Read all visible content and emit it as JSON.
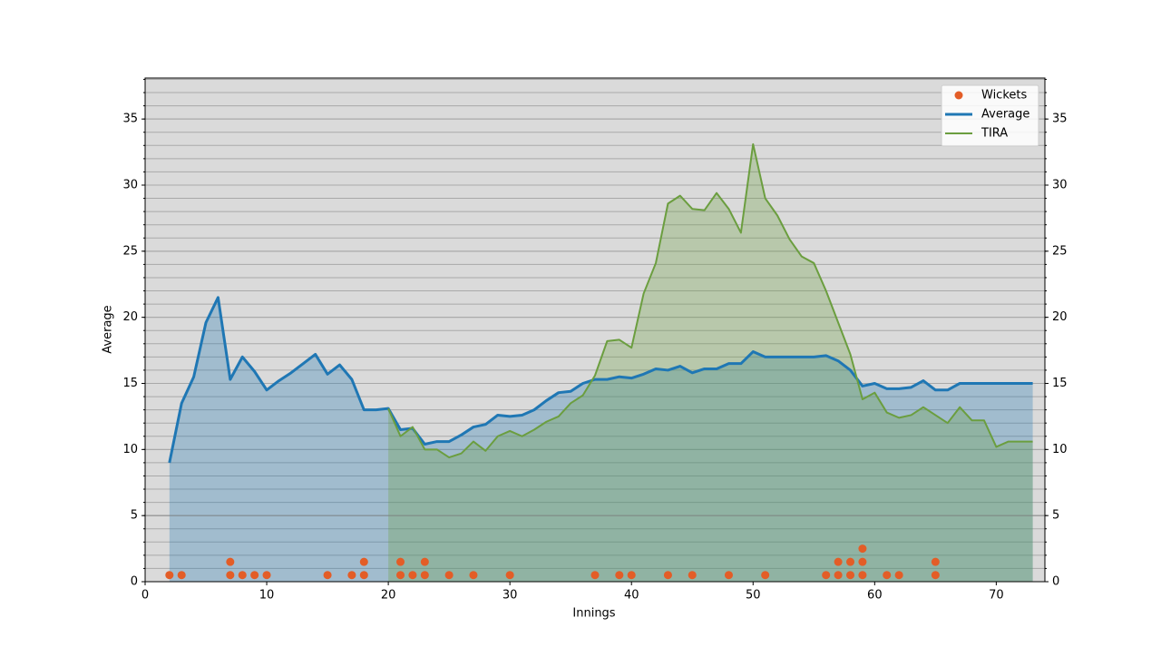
{
  "chart_data": {
    "type": "combo",
    "xlabel": "Innings",
    "ylabel": "Average",
    "xlim": [
      0,
      74
    ],
    "ylim": [
      0,
      38.1
    ],
    "xticks": [
      0,
      10,
      20,
      30,
      40,
      50,
      60,
      70
    ],
    "yticks": [
      0,
      5,
      10,
      15,
      20,
      25,
      30,
      35
    ],
    "yminor": 1,
    "grid": true,
    "right_axis": true,
    "hline": 5,
    "legend": "upper right",
    "series": [
      {
        "name": "Wickets",
        "type": "scatter",
        "color": "#e35d27",
        "x": [
          2,
          3,
          7,
          7,
          8,
          9,
          10,
          15,
          17,
          18,
          18,
          21,
          21,
          22,
          23,
          23,
          25,
          27,
          30,
          37,
          39,
          40,
          43,
          45,
          48,
          51,
          56,
          57,
          57,
          58,
          58,
          59,
          59,
          59,
          61,
          62,
          65,
          65
        ],
        "values": [
          0.5,
          0.5,
          0.5,
          1.5,
          0.5,
          0.5,
          0.5,
          0.5,
          0.5,
          0.5,
          1.5,
          0.5,
          1.5,
          0.5,
          0.5,
          1.5,
          0.5,
          0.5,
          0.5,
          0.5,
          0.5,
          0.5,
          0.5,
          0.5,
          0.5,
          0.5,
          0.5,
          0.5,
          1.5,
          0.5,
          1.5,
          0.5,
          1.5,
          2.5,
          0.5,
          0.5,
          0.5,
          1.5
        ]
      },
      {
        "name": "Average",
        "type": "line",
        "color": "#1f77b4",
        "fill": true,
        "width": 3,
        "x": [
          2,
          3,
          4,
          5,
          6,
          7,
          8,
          9,
          10,
          11,
          12,
          13,
          14,
          15,
          16,
          17,
          18,
          19,
          20,
          21,
          22,
          23,
          24,
          25,
          26,
          27,
          28,
          29,
          30,
          31,
          32,
          33,
          34,
          35,
          36,
          37,
          38,
          39,
          40,
          41,
          42,
          43,
          44,
          45,
          46,
          47,
          48,
          49,
          50,
          51,
          52,
          53,
          54,
          55,
          56,
          57,
          58,
          59,
          60,
          61,
          62,
          63,
          64,
          65,
          66,
          67,
          68,
          69,
          70,
          71,
          72,
          73
        ],
        "values": [
          9.0,
          13.5,
          15.5,
          19.6,
          21.5,
          15.3,
          17.0,
          15.9,
          14.5,
          15.2,
          15.8,
          16.5,
          17.2,
          15.7,
          16.4,
          15.3,
          13.0,
          13.0,
          13.1,
          11.5,
          11.6,
          10.4,
          10.6,
          10.6,
          11.1,
          11.7,
          11.9,
          12.6,
          12.5,
          12.6,
          13.0,
          13.7,
          14.3,
          14.4,
          15.0,
          15.3,
          15.3,
          15.5,
          15.4,
          15.7,
          16.1,
          16.0,
          16.3,
          15.8,
          16.1,
          16.1,
          16.5,
          16.5,
          17.4,
          17.0,
          17.0,
          17.0,
          17.0,
          17.0,
          17.1,
          16.7,
          16.0,
          14.8,
          15.0,
          14.6,
          14.6,
          14.7,
          15.2,
          14.5,
          14.5,
          15.0,
          15.0,
          15.0,
          15.0,
          15.0,
          15.0,
          15.0
        ]
      },
      {
        "name": "TIRA",
        "type": "line",
        "color": "#6b9e3f",
        "fill": true,
        "width": 2,
        "x": [
          20,
          21,
          22,
          23,
          24,
          25,
          26,
          27,
          28,
          29,
          30,
          31,
          32,
          33,
          34,
          35,
          36,
          37,
          38,
          39,
          40,
          41,
          42,
          43,
          44,
          45,
          46,
          47,
          48,
          49,
          50,
          51,
          52,
          53,
          54,
          55,
          56,
          57,
          58,
          59,
          60,
          61,
          62,
          63,
          64,
          65,
          66,
          67,
          68,
          69,
          70,
          71,
          72,
          73
        ],
        "values": [
          13.1,
          11.0,
          11.7,
          10.0,
          10.0,
          9.4,
          9.7,
          10.6,
          9.9,
          11.0,
          11.4,
          11.0,
          11.5,
          12.1,
          12.5,
          13.5,
          14.1,
          15.6,
          18.2,
          18.3,
          17.7,
          21.8,
          24.1,
          28.6,
          29.2,
          28.2,
          28.1,
          29.4,
          28.2,
          26.4,
          33.1,
          29.0,
          27.7,
          25.9,
          24.6,
          24.1,
          22.0,
          19.6,
          17.2,
          13.8,
          14.3,
          12.8,
          12.4,
          12.6,
          13.2,
          12.6,
          12.0,
          13.2,
          12.2,
          12.2,
          10.2,
          10.6,
          10.6,
          10.6
        ]
      }
    ]
  }
}
